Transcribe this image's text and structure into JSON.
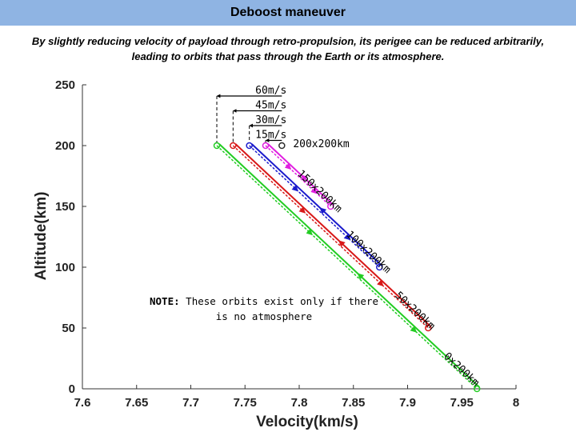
{
  "header": {
    "title": "Deboost maneuver"
  },
  "subtitle": {
    "line1": "By slightly reducing velocity of payload through retro-propulsion, its perigee can be reduced arbitrarily,",
    "line2": "leading to orbits that pass through the Earth or its atmosphere."
  },
  "note": {
    "bold": "NOTE:",
    "line1": " These orbits exist only if there",
    "line2": "is no atmosphere"
  },
  "chart_data": {
    "type": "line",
    "xlabel": "Velocity(km/s)",
    "ylabel": "Altitude(km)",
    "xlim": [
      7.6,
      8.0
    ],
    "ylim": [
      0,
      250
    ],
    "xticks": [
      "7.6",
      "7.65",
      "7.7",
      "7.75",
      "7.8",
      "7.85",
      "7.9",
      "7.95",
      "8"
    ],
    "yticks": [
      "0",
      "50",
      "100",
      "150",
      "200",
      "250"
    ],
    "grid": false,
    "deltav_labels": [
      "60m/s",
      "45m/s",
      "30m/s",
      "15m/s"
    ],
    "series": [
      {
        "label": "200x200km",
        "color": "#2b2b2b",
        "apogee": [
          7.784,
          200
        ],
        "perigee": [
          7.784,
          200
        ]
      },
      {
        "label": "150x200km",
        "color": "#e01ee0",
        "apogee": [
          7.769,
          200
        ],
        "perigee": [
          7.829,
          150
        ]
      },
      {
        "label": "100x200km",
        "color": "#1a1acc",
        "apogee": [
          7.754,
          200
        ],
        "perigee": [
          7.874,
          100
        ]
      },
      {
        "label": "50x200km",
        "color": "#d81818",
        "apogee": [
          7.739,
          200
        ],
        "perigee": [
          7.919,
          50
        ]
      },
      {
        "label": "0x200km",
        "color": "#22cc22",
        "apogee": [
          7.724,
          200
        ],
        "perigee": [
          7.964,
          0
        ]
      }
    ]
  }
}
